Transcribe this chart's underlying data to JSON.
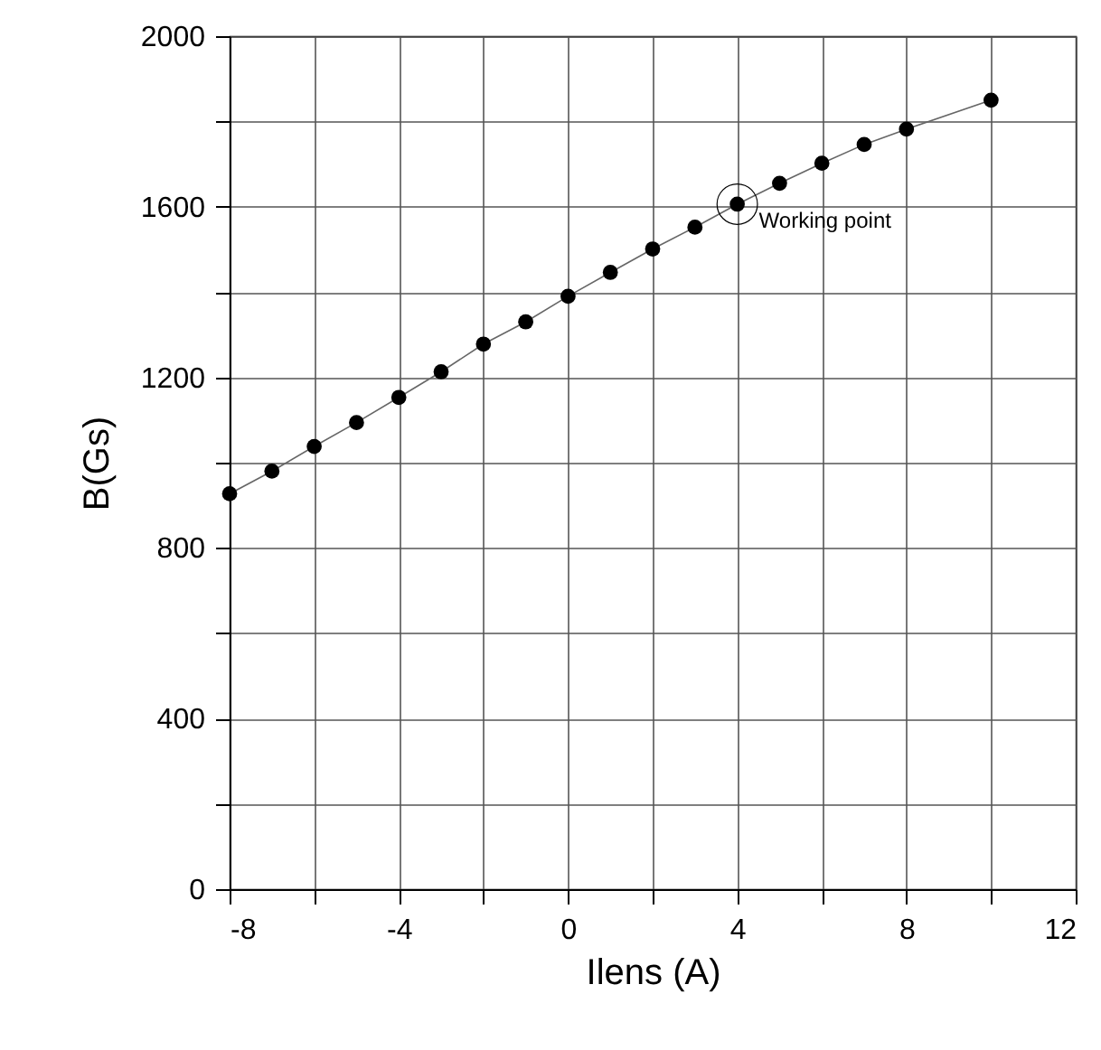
{
  "chart_data": {
    "type": "line",
    "xlabel": "Ilens (A)",
    "ylabel": "B(Gs)",
    "x": [
      -8,
      -7,
      -6,
      -5,
      -4,
      -3,
      -2,
      -1,
      0,
      1,
      2,
      3,
      4,
      5,
      6,
      7,
      8,
      10
    ],
    "series": [
      {
        "color": "#000000",
        "values": [
          927,
          980,
          1038,
          1094,
          1153,
          1213,
          1278,
          1330,
          1390,
          1446,
          1501,
          1552,
          1606,
          1655,
          1702,
          1746,
          1782,
          1850
        ]
      }
    ],
    "xlim": [
      -8,
      12
    ],
    "ylim": [
      0,
      2000
    ],
    "xticks": [
      -8,
      {
        "value": -6,
        "label": null
      },
      -4,
      {
        "value": -2,
        "label": null
      },
      0,
      {
        "value": 2,
        "label": null
      },
      4,
      {
        "value": 6,
        "label": null
      },
      8,
      {
        "value": 10,
        "label": null
      },
      12
    ],
    "yticks": [
      0,
      {
        "value": 200,
        "label": null
      },
      400,
      {
        "value": 600,
        "label": null
      },
      800,
      {
        "value": 1000,
        "label": null
      },
      1200,
      {
        "value": 1400,
        "label": null
      },
      1600,
      {
        "value": 1800,
        "label": null
      },
      2000
    ],
    "grid": true,
    "marker": "circle",
    "line_style": "solid",
    "annotations": [
      {
        "text": "Working point",
        "x": 4,
        "y": 1606
      }
    ]
  }
}
